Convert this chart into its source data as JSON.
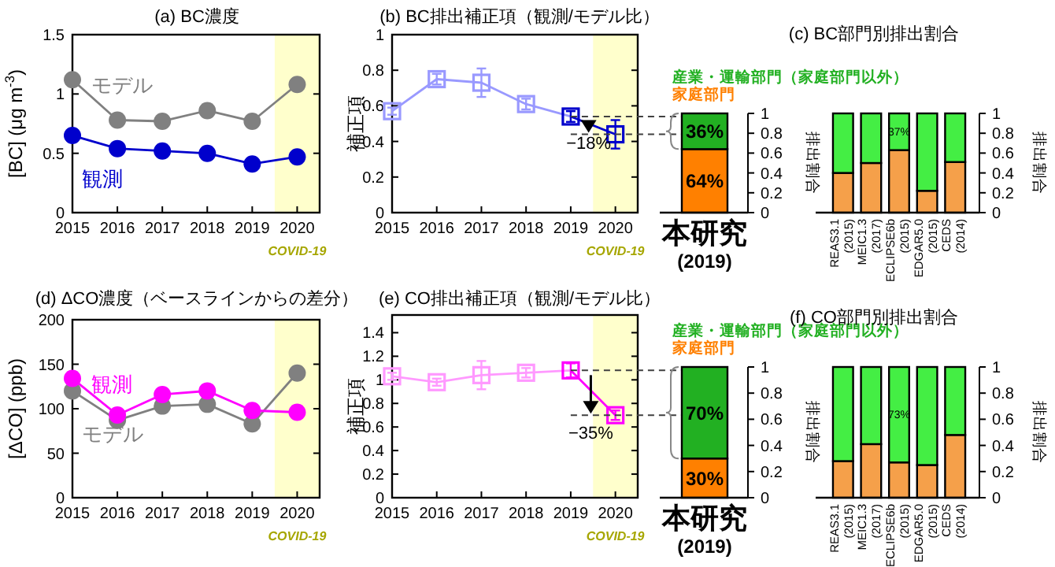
{
  "chart_data": [
    {
      "type": "line",
      "title": "(a) BC濃度",
      "ylabel": "[BC] (μg m$^{-3}$)",
      "x": [
        2015,
        2016,
        2017,
        2018,
        2019,
        2020
      ],
      "xlim": [
        2015,
        2020.5
      ],
      "xticks": [
        2015,
        2016,
        2017,
        2018,
        2019,
        2020
      ],
      "ylim": [
        0,
        1.5
      ],
      "yticks": [
        0,
        0.5,
        1,
        1.5
      ],
      "marker": "circle",
      "bands": [
        {
          "axis": "x",
          "from": 2019.5,
          "to": 2020.5,
          "label": "COVID-19",
          "color": "#ffffcc"
        }
      ],
      "series": [
        {
          "name": "モデル",
          "color": "#808080",
          "values": [
            1.12,
            0.78,
            0.77,
            0.86,
            0.77,
            1.08
          ]
        },
        {
          "name": "観測",
          "color": "#0000cc",
          "values": [
            0.65,
            0.54,
            0.52,
            0.5,
            0.41,
            0.47
          ]
        }
      ]
    },
    {
      "type": "line",
      "title": "(b) BC排出補正項（観測/モデル比）",
      "ylabel": "補正項",
      "x": [
        2015,
        2016,
        2017,
        2018,
        2019,
        2020
      ],
      "xlim": [
        2015,
        2020.5
      ],
      "xticks": [
        2015,
        2016,
        2017,
        2018,
        2019,
        2020
      ],
      "ylim": [
        0,
        1
      ],
      "yticks": [
        0,
        0.2,
        0.4,
        0.6,
        0.8,
        1
      ],
      "marker": "square",
      "bands": [
        {
          "axis": "x",
          "from": 2019.5,
          "to": 2020.5,
          "label": "COVID-19",
          "color": "#ffffcc"
        }
      ],
      "ref_lines": [
        {
          "axis": "y",
          "value": 0.54,
          "color": "#404040",
          "line_style": "dashed"
        },
        {
          "axis": "y",
          "value": 0.44,
          "color": "#404040",
          "line_style": "dashed"
        }
      ],
      "annotations": [
        {
          "text": "−18%",
          "x": 2019.4,
          "y": 0.36
        }
      ],
      "series": [
        {
          "colors": [
            "#9999ff",
            "#9999ff",
            "#9999ff",
            "#9999ff",
            "#0000cc",
            "#0000cc"
          ],
          "values": [
            0.57,
            0.75,
            0.73,
            0.61,
            0.54,
            0.44
          ],
          "errors": [
            0.02,
            0.03,
            0.08,
            0.03,
            0.03,
            0.08
          ]
        }
      ]
    },
    {
      "type": "bar",
      "stacked": true,
      "categories": [
        "本研究 (2019)"
      ],
      "ylabel": "排出割合",
      "ylim": [
        0,
        1
      ],
      "yticks": [
        0,
        0.2,
        0.4,
        0.6,
        0.8,
        1
      ],
      "legend": "top",
      "series": [
        {
          "name": "家庭部門",
          "color": "#ff8000",
          "values": [
            0.64
          ],
          "value_labels": [
            "64%"
          ]
        },
        {
          "name": "産業・運輸部門（家庭部門以外）",
          "color": "#22b022",
          "values": [
            0.36
          ],
          "value_labels": [
            "36%"
          ]
        }
      ]
    },
    {
      "type": "bar",
      "stacked": true,
      "title": "(c) BC部門別排出割合",
      "categories": [
        "REAS3.1 (2015)",
        "MEIC1.3 (2017)",
        "ECLIPSE6b (2015)",
        "EDGAR5.0 (2015)",
        "CEDS (2014)"
      ],
      "ylabel": "排出割合",
      "ylim": [
        0,
        1
      ],
      "yticks": [
        0,
        0.2,
        0.4,
        0.6,
        0.8,
        1
      ],
      "series": [
        {
          "color": "#f5a04a",
          "values": [
            0.4,
            0.5,
            0.63,
            0.22,
            0.51
          ]
        },
        {
          "color": "#44ee44",
          "values": [
            0.6,
            0.5,
            0.37,
            0.78,
            0.49
          ],
          "value_labels": [
            null,
            null,
            "37%",
            null,
            null
          ]
        }
      ]
    },
    {
      "type": "line",
      "title": "(d) ΔCO濃度（ベースラインからの差分）",
      "ylabel": "[ΔCO] (ppb)",
      "x": [
        2015,
        2016,
        2017,
        2018,
        2019,
        2020
      ],
      "xlim": [
        2015,
        2020.5
      ],
      "xticks": [
        2015,
        2016,
        2017,
        2018,
        2019,
        2020
      ],
      "ylim": [
        0,
        200
      ],
      "yticks": [
        0,
        50,
        100,
        150,
        200
      ],
      "marker": "circle",
      "bands": [
        {
          "axis": "x",
          "from": 2019.5,
          "to": 2020.5,
          "label": "COVID-19",
          "color": "#ffffcc"
        }
      ],
      "series": [
        {
          "name": "観測",
          "color": "#ff00ff",
          "values": [
            134,
            93,
            116,
            120,
            98,
            96
          ]
        },
        {
          "name": "モデル",
          "color": "#808080",
          "values": [
            120,
            87,
            103,
            105,
            83,
            140
          ]
        }
      ]
    },
    {
      "type": "line",
      "title": "(e) CO排出補正項（観測/モデル比）",
      "ylabel": "補正項",
      "x": [
        2015,
        2016,
        2017,
        2018,
        2019,
        2020
      ],
      "xlim": [
        2015,
        2020.5
      ],
      "xticks": [
        2015,
        2016,
        2017,
        2018,
        2019,
        2020
      ],
      "ylim": [
        0,
        1.55
      ],
      "yticks": [
        0,
        0.2,
        0.4,
        0.6,
        0.8,
        1,
        1.2,
        1.4
      ],
      "marker": "square",
      "bands": [
        {
          "axis": "x",
          "from": 2019.5,
          "to": 2020.5,
          "label": "COVID-19",
          "color": "#ffffcc"
        }
      ],
      "ref_lines": [
        {
          "axis": "y",
          "value": 1.08,
          "color": "#404040",
          "line_style": "dashed"
        },
        {
          "axis": "y",
          "value": 0.7,
          "color": "#404040",
          "line_style": "dashed"
        }
      ],
      "annotations": [
        {
          "text": "−35%",
          "x": 2019.45,
          "y": 0.5
        }
      ],
      "series": [
        {
          "colors": [
            "#ff99ff",
            "#ff99ff",
            "#ff99ff",
            "#ff99ff",
            "#ff00ff",
            "#ff00ff"
          ],
          "values": [
            1.03,
            0.98,
            1.04,
            1.06,
            1.08,
            0.7
          ],
          "errors": [
            0.03,
            0.03,
            0.12,
            0.04,
            0.06,
            0.04
          ]
        }
      ]
    },
    {
      "type": "bar",
      "stacked": true,
      "categories": [
        "本研究 (2019)"
      ],
      "ylabel": "排出割合",
      "ylim": [
        0,
        1
      ],
      "yticks": [
        0,
        0.2,
        0.4,
        0.6,
        0.8,
        1
      ],
      "legend": "top",
      "series": [
        {
          "name": "家庭部門",
          "color": "#ff8000",
          "values": [
            0.3
          ],
          "value_labels": [
            "30%"
          ]
        },
        {
          "name": "産業・運輸部門（家庭部門以外）",
          "color": "#22b022",
          "values": [
            0.7
          ],
          "value_labels": [
            "70%"
          ]
        }
      ]
    },
    {
      "type": "bar",
      "stacked": true,
      "title": "(f) CO部門別排出割合",
      "categories": [
        "REAS3.1 (2015)",
        "MEIC1.3 (2017)",
        "ECLIPSE6b (2015)",
        "EDGAR5.0 (2015)",
        "CEDS (2014)"
      ],
      "ylabel": "排出割合",
      "ylim": [
        0,
        1
      ],
      "yticks": [
        0,
        0.2,
        0.4,
        0.6,
        0.8,
        1
      ],
      "series": [
        {
          "color": "#f5a04a",
          "values": [
            0.28,
            0.41,
            0.27,
            0.25,
            0.48
          ]
        },
        {
          "color": "#44ee44",
          "values": [
            0.72,
            0.59,
            0.73,
            0.75,
            0.52
          ],
          "value_labels": [
            null,
            null,
            "73%",
            null,
            null
          ]
        }
      ]
    }
  ]
}
